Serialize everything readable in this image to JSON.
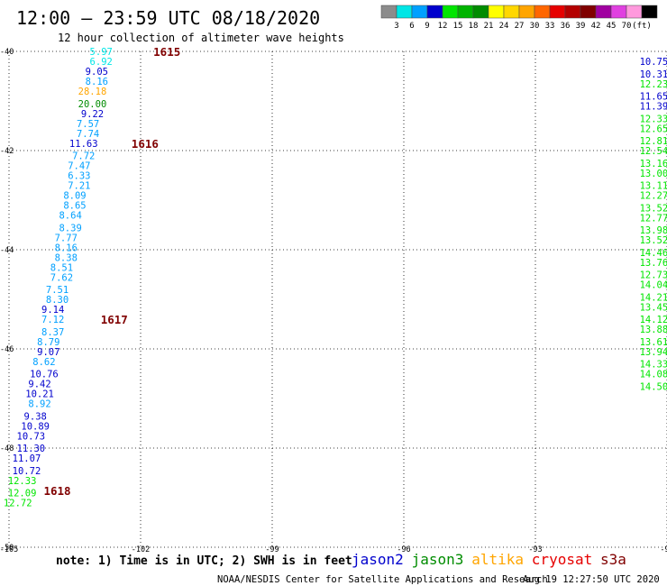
{
  "header": {
    "title": "12:00 – 23:59 UTC 08/18/2020",
    "subtitle": "12 hour collection of altimeter wave heights"
  },
  "colorbar": {
    "colors": [
      "#8c8c8c",
      "#00e6e6",
      "#00a0ff",
      "#0000cd",
      "#00e600",
      "#00b400",
      "#008c00",
      "#ffff00",
      "#ffd700",
      "#ffa500",
      "#ff6600",
      "#e60000",
      "#b40000",
      "#800000",
      "#a000a0",
      "#e040e0",
      "#ff99dd",
      "#000000"
    ],
    "labels": [
      "3",
      "6",
      "9",
      "12",
      "15",
      "18",
      "21",
      "24",
      "27",
      "30",
      "33",
      "36",
      "39",
      "42",
      "45",
      "70",
      "(ft)"
    ]
  },
  "chart_data": {
    "type": "scatter",
    "xlim": [
      -105,
      -90
    ],
    "ylim": [
      -50,
      -40
    ],
    "x_ticks": [
      "-105",
      "-102",
      "-99",
      "-96",
      "-93",
      "-90"
    ],
    "y_ticks": [
      "-40",
      "-42",
      "-44",
      "-46",
      "-48",
      "-50"
    ],
    "grid": true,
    "time_labels": [
      {
        "text": "1615",
        "lon": -101.4,
        "lat": -40.0
      },
      {
        "text": "1616",
        "lon": -101.9,
        "lat": -41.85
      },
      {
        "text": "1617",
        "lon": -102.6,
        "lat": -45.4
      },
      {
        "text": "1618",
        "lon": -103.9,
        "lat": -48.85
      }
    ],
    "series": [
      {
        "satellite": "jason2",
        "points": [
          {
            "lon": -102.9,
            "lat": -40.0,
            "value": "5.97",
            "color": "#00e6e6"
          },
          {
            "lon": -102.9,
            "lat": -40.2,
            "value": "6.92",
            "color": "#00e6e6"
          },
          {
            "lon": -103.0,
            "lat": -40.4,
            "value": "9.05",
            "color": "#0000cd"
          },
          {
            "lon": -103.0,
            "lat": -40.6,
            "value": "8.16",
            "color": "#00a0ff"
          },
          {
            "lon": -103.1,
            "lat": -40.8,
            "value": "28.18",
            "color": "#ffa500"
          },
          {
            "lon": -103.1,
            "lat": -41.05,
            "value": "20.00",
            "color": "#008c00"
          },
          {
            "lon": -103.1,
            "lat": -41.25,
            "value": "9.22",
            "color": "#0000cd"
          },
          {
            "lon": -103.2,
            "lat": -41.45,
            "value": "7.57",
            "color": "#00a0ff"
          },
          {
            "lon": -103.2,
            "lat": -41.65,
            "value": "7.74",
            "color": "#00a0ff"
          },
          {
            "lon": -103.3,
            "lat": -41.85,
            "value": "11.63",
            "color": "#0000cd"
          },
          {
            "lon": -103.3,
            "lat": -42.1,
            "value": "7.72",
            "color": "#00a0ff"
          },
          {
            "lon": -103.4,
            "lat": -42.3,
            "value": "7.47",
            "color": "#00a0ff"
          },
          {
            "lon": -103.4,
            "lat": -42.5,
            "value": "6.33",
            "color": "#00a0ff"
          },
          {
            "lon": -103.4,
            "lat": -42.7,
            "value": "7.21",
            "color": "#00a0ff"
          },
          {
            "lon": -103.5,
            "lat": -42.9,
            "value": "8.09",
            "color": "#00a0ff"
          },
          {
            "lon": -103.5,
            "lat": -43.1,
            "value": "8.65",
            "color": "#00a0ff"
          },
          {
            "lon": -103.6,
            "lat": -43.3,
            "value": "8.64",
            "color": "#00a0ff"
          },
          {
            "lon": -103.6,
            "lat": -43.55,
            "value": "8.39",
            "color": "#00a0ff"
          },
          {
            "lon": -103.7,
            "lat": -43.75,
            "value": "7.77",
            "color": "#00a0ff"
          },
          {
            "lon": -103.7,
            "lat": -43.95,
            "value": "8.16",
            "color": "#00a0ff"
          },
          {
            "lon": -103.7,
            "lat": -44.15,
            "value": "8.38",
            "color": "#00a0ff"
          },
          {
            "lon": -103.8,
            "lat": -44.35,
            "value": "8.51",
            "color": "#00a0ff"
          },
          {
            "lon": -103.8,
            "lat": -44.55,
            "value": "7.62",
            "color": "#00a0ff"
          },
          {
            "lon": -103.9,
            "lat": -44.8,
            "value": "7.51",
            "color": "#00a0ff"
          },
          {
            "lon": -103.9,
            "lat": -45.0,
            "value": "8.30",
            "color": "#00a0ff"
          },
          {
            "lon": -104.0,
            "lat": -45.2,
            "value": "9.14",
            "color": "#0000cd"
          },
          {
            "lon": -104.0,
            "lat": -45.4,
            "value": "7.12",
            "color": "#00a0ff"
          },
          {
            "lon": -104.0,
            "lat": -45.65,
            "value": "8.37",
            "color": "#00a0ff"
          },
          {
            "lon": -104.1,
            "lat": -45.85,
            "value": "8.79",
            "color": "#00a0ff"
          },
          {
            "lon": -104.1,
            "lat": -46.05,
            "value": "9.07",
            "color": "#0000cd"
          },
          {
            "lon": -104.2,
            "lat": -46.25,
            "value": "8.62",
            "color": "#00a0ff"
          },
          {
            "lon": -104.2,
            "lat": -46.5,
            "value": "10.76",
            "color": "#0000cd"
          },
          {
            "lon": -104.3,
            "lat": -46.7,
            "value": "9.42",
            "color": "#0000cd"
          },
          {
            "lon": -104.3,
            "lat": -46.9,
            "value": "10.21",
            "color": "#0000cd"
          },
          {
            "lon": -104.3,
            "lat": -47.1,
            "value": "8.92",
            "color": "#00a0ff"
          },
          {
            "lon": -104.4,
            "lat": -47.35,
            "value": "9.38",
            "color": "#0000cd"
          },
          {
            "lon": -104.4,
            "lat": -47.55,
            "value": "10.89",
            "color": "#0000cd"
          },
          {
            "lon": -104.5,
            "lat": -47.75,
            "value": "10.73",
            "color": "#0000cd"
          },
          {
            "lon": -104.5,
            "lat": -48.0,
            "value": "11.30",
            "color": "#0000cd"
          },
          {
            "lon": -104.6,
            "lat": -48.2,
            "value": "11.07",
            "color": "#0000cd"
          },
          {
            "lon": -104.6,
            "lat": -48.45,
            "value": "10.72",
            "color": "#0000cd"
          },
          {
            "lon": -104.7,
            "lat": -48.65,
            "value": "12.33",
            "color": "#00e600"
          },
          {
            "lon": -104.7,
            "lat": -48.9,
            "value": "12.09",
            "color": "#00e600"
          },
          {
            "lon": -104.8,
            "lat": -49.1,
            "value": "12.72",
            "color": "#00e600"
          }
        ]
      },
      {
        "satellite": "jason3",
        "points": [
          {
            "lon": -90.3,
            "lat": -40.2,
            "value": "10.75",
            "color": "#0000cd"
          },
          {
            "lon": -90.3,
            "lat": -40.45,
            "value": "10.31",
            "color": "#0000cd"
          },
          {
            "lon": -90.3,
            "lat": -40.65,
            "value": "12.23",
            "color": "#00e600"
          },
          {
            "lon": -90.3,
            "lat": -40.9,
            "value": "11.65",
            "color": "#0000cd"
          },
          {
            "lon": -90.3,
            "lat": -41.1,
            "value": "11.39",
            "color": "#0000cd"
          },
          {
            "lon": -90.3,
            "lat": -41.35,
            "value": "12.33",
            "color": "#00e600"
          },
          {
            "lon": -90.3,
            "lat": -41.55,
            "value": "12.65",
            "color": "#00e600"
          },
          {
            "lon": -90.3,
            "lat": -41.8,
            "value": "12.81",
            "color": "#00e600"
          },
          {
            "lon": -90.3,
            "lat": -42.0,
            "value": "12.54",
            "color": "#00e600"
          },
          {
            "lon": -90.3,
            "lat": -42.25,
            "value": "13.16",
            "color": "#00e600"
          },
          {
            "lon": -90.3,
            "lat": -42.45,
            "value": "13.00",
            "color": "#00e600"
          },
          {
            "lon": -90.3,
            "lat": -42.7,
            "value": "13.11",
            "color": "#00e600"
          },
          {
            "lon": -90.3,
            "lat": -42.9,
            "value": "12.27",
            "color": "#00e600"
          },
          {
            "lon": -90.3,
            "lat": -43.15,
            "value": "13.52",
            "color": "#00e600"
          },
          {
            "lon": -90.3,
            "lat": -43.35,
            "value": "12.77",
            "color": "#00e600"
          },
          {
            "lon": -90.3,
            "lat": -43.6,
            "value": "13.98",
            "color": "#00e600"
          },
          {
            "lon": -90.3,
            "lat": -43.8,
            "value": "13.52",
            "color": "#00e600"
          },
          {
            "lon": -90.3,
            "lat": -44.05,
            "value": "14.46",
            "color": "#00e600"
          },
          {
            "lon": -90.3,
            "lat": -44.25,
            "value": "13.76",
            "color": "#00e600"
          },
          {
            "lon": -90.3,
            "lat": -44.5,
            "value": "12.73",
            "color": "#00e600"
          },
          {
            "lon": -90.3,
            "lat": -44.7,
            "value": "14.04",
            "color": "#00e600"
          },
          {
            "lon": -90.3,
            "lat": -44.95,
            "value": "14.21",
            "color": "#00e600"
          },
          {
            "lon": -90.3,
            "lat": -45.15,
            "value": "13.45",
            "color": "#00e600"
          },
          {
            "lon": -90.3,
            "lat": -45.4,
            "value": "14.12",
            "color": "#00e600"
          },
          {
            "lon": -90.3,
            "lat": -45.6,
            "value": "13.88",
            "color": "#00e600"
          },
          {
            "lon": -90.3,
            "lat": -45.85,
            "value": "13.61",
            "color": "#00e600"
          },
          {
            "lon": -90.3,
            "lat": -46.05,
            "value": "13.94",
            "color": "#00e600"
          },
          {
            "lon": -90.3,
            "lat": -46.3,
            "value": "14.33",
            "color": "#00e600"
          },
          {
            "lon": -90.3,
            "lat": -46.5,
            "value": "14.08",
            "color": "#00e600"
          },
          {
            "lon": -90.3,
            "lat": -46.75,
            "value": "14.50",
            "color": "#00e600"
          }
        ]
      }
    ]
  },
  "footer": {
    "note": "note: 1) Time is in UTC; 2) SWH is in feet",
    "legend": [
      {
        "name": "jason2",
        "color": "#0000cd"
      },
      {
        "name": "jason3",
        "color": "#008c00"
      },
      {
        "name": "altika",
        "color": "#ffa500"
      },
      {
        "name": "cryosat",
        "color": "#e60000"
      },
      {
        "name": "s3a",
        "color": "#800000"
      }
    ],
    "credit": "NOAA/NESDIS Center for Satellite Applications and Research",
    "timestamp": "Aug 19 12:27:50 UTC 2020"
  }
}
